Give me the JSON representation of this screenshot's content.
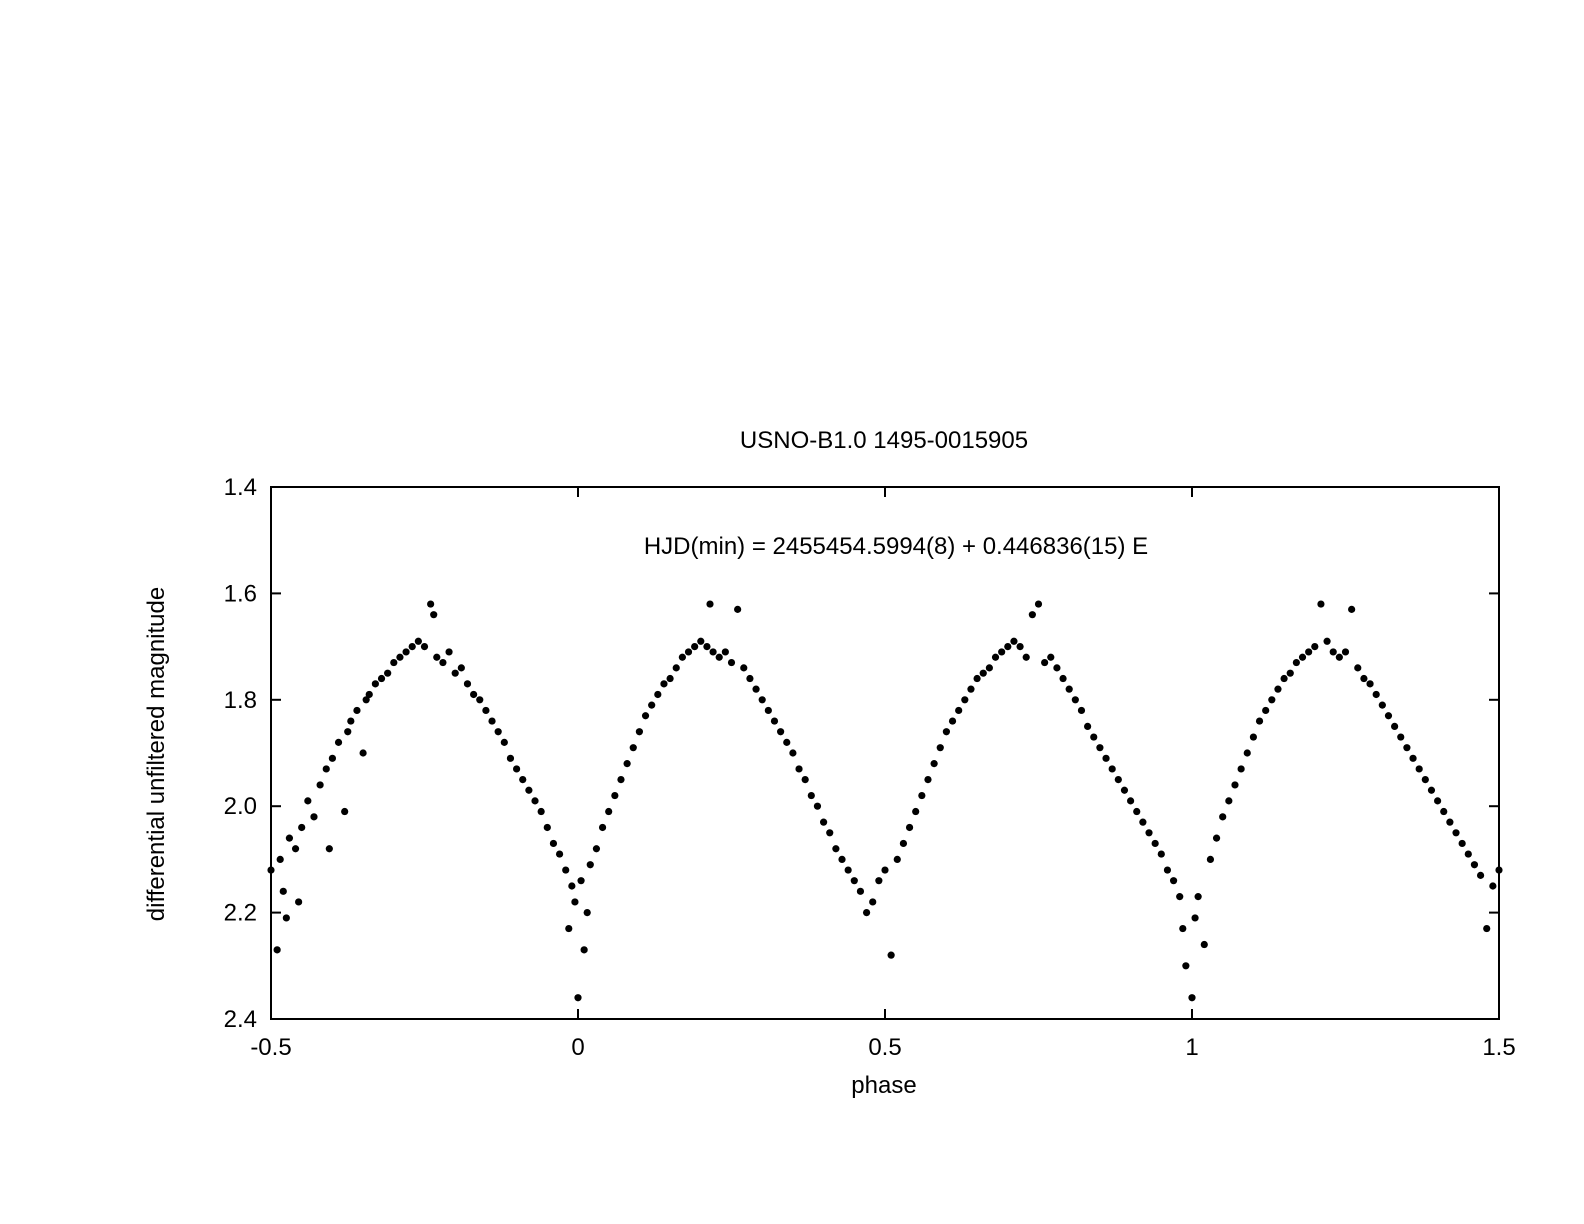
{
  "chart_data": {
    "type": "scatter",
    "title": "USNO-B1.0 1495-0015905",
    "annotation": "HJD(min) = 2455454.5994(8) + 0.446836(15) E",
    "xlabel": "phase",
    "ylabel": "differential unfiltered magnitude",
    "xlim": [
      -0.5,
      1.5
    ],
    "ylim": [
      2.4,
      1.4
    ],
    "y_inverted": true,
    "grid": false,
    "legend": "none",
    "x_ticks": [
      {
        "value": -0.5,
        "label": "-0.5"
      },
      {
        "value": 0,
        "label": "0"
      },
      {
        "value": 0.5,
        "label": "0.5"
      },
      {
        "value": 1,
        "label": "1"
      },
      {
        "value": 1.5,
        "label": "1.5"
      }
    ],
    "y_ticks": [
      {
        "value": 1.4,
        "label": "1.4"
      },
      {
        "value": 1.6,
        "label": "1.6"
      },
      {
        "value": 1.8,
        "label": "1.8"
      },
      {
        "value": 2.0,
        "label": "2.0"
      },
      {
        "value": 2.2,
        "label": "2.2"
      },
      {
        "value": 2.4,
        "label": "2.4"
      }
    ],
    "marker_color": "#000000",
    "series": [
      {
        "points": [
          [
            -0.5,
            2.12
          ],
          [
            -0.49,
            2.27
          ],
          [
            -0.485,
            2.1
          ],
          [
            -0.48,
            2.16
          ],
          [
            -0.475,
            2.21
          ],
          [
            -0.47,
            2.06
          ],
          [
            -0.46,
            2.08
          ],
          [
            -0.455,
            2.18
          ],
          [
            -0.45,
            2.04
          ],
          [
            -0.44,
            1.99
          ],
          [
            -0.43,
            2.02
          ],
          [
            -0.42,
            1.96
          ],
          [
            -0.41,
            1.93
          ],
          [
            -0.405,
            2.08
          ],
          [
            -0.4,
            1.91
          ],
          [
            -0.39,
            1.88
          ],
          [
            -0.38,
            2.01
          ],
          [
            -0.375,
            1.86
          ],
          [
            -0.37,
            1.84
          ],
          [
            -0.36,
            1.82
          ],
          [
            -0.35,
            1.9
          ],
          [
            -0.345,
            1.8
          ],
          [
            -0.34,
            1.79
          ],
          [
            -0.33,
            1.77
          ],
          [
            -0.32,
            1.76
          ],
          [
            -0.31,
            1.75
          ],
          [
            -0.3,
            1.73
          ],
          [
            -0.29,
            1.72
          ],
          [
            -0.28,
            1.71
          ],
          [
            -0.27,
            1.7
          ],
          [
            -0.26,
            1.69
          ],
          [
            -0.25,
            1.7
          ],
          [
            -0.24,
            1.62
          ],
          [
            -0.235,
            1.64
          ],
          [
            -0.23,
            1.72
          ],
          [
            -0.22,
            1.73
          ],
          [
            -0.21,
            1.71
          ],
          [
            -0.2,
            1.75
          ],
          [
            -0.19,
            1.74
          ],
          [
            -0.18,
            1.77
          ],
          [
            -0.17,
            1.79
          ],
          [
            -0.16,
            1.8
          ],
          [
            -0.15,
            1.82
          ],
          [
            -0.14,
            1.84
          ],
          [
            -0.13,
            1.86
          ],
          [
            -0.12,
            1.88
          ],
          [
            -0.11,
            1.91
          ],
          [
            -0.1,
            1.93
          ],
          [
            -0.09,
            1.95
          ],
          [
            -0.08,
            1.97
          ],
          [
            -0.07,
            1.99
          ],
          [
            -0.06,
            2.01
          ],
          [
            -0.05,
            2.04
          ],
          [
            -0.04,
            2.07
          ],
          [
            -0.03,
            2.09
          ],
          [
            -0.02,
            2.12
          ],
          [
            -0.015,
            2.23
          ],
          [
            -0.01,
            2.15
          ],
          [
            -0.005,
            2.18
          ],
          [
            0.0,
            2.36
          ],
          [
            0.005,
            2.14
          ],
          [
            0.01,
            2.27
          ],
          [
            0.015,
            2.2
          ],
          [
            0.02,
            2.11
          ],
          [
            0.03,
            2.08
          ],
          [
            0.04,
            2.04
          ],
          [
            0.05,
            2.01
          ],
          [
            0.06,
            1.98
          ],
          [
            0.07,
            1.95
          ],
          [
            0.08,
            1.92
          ],
          [
            0.09,
            1.89
          ],
          [
            0.1,
            1.86
          ],
          [
            0.11,
            1.83
          ],
          [
            0.12,
            1.81
          ],
          [
            0.13,
            1.79
          ],
          [
            0.14,
            1.77
          ],
          [
            0.15,
            1.76
          ],
          [
            0.16,
            1.74
          ],
          [
            0.17,
            1.72
          ],
          [
            0.18,
            1.71
          ],
          [
            0.19,
            1.7
          ],
          [
            0.2,
            1.69
          ],
          [
            0.21,
            1.7
          ],
          [
            0.215,
            1.62
          ],
          [
            0.22,
            1.71
          ],
          [
            0.23,
            1.72
          ],
          [
            0.24,
            1.71
          ],
          [
            0.25,
            1.73
          ],
          [
            0.26,
            1.63
          ],
          [
            0.27,
            1.74
          ],
          [
            0.28,
            1.76
          ],
          [
            0.29,
            1.78
          ],
          [
            0.3,
            1.8
          ],
          [
            0.31,
            1.82
          ],
          [
            0.32,
            1.84
          ],
          [
            0.33,
            1.86
          ],
          [
            0.34,
            1.88
          ],
          [
            0.35,
            1.9
          ],
          [
            0.36,
            1.93
          ],
          [
            0.37,
            1.95
          ],
          [
            0.38,
            1.98
          ],
          [
            0.39,
            2.0
          ],
          [
            0.4,
            2.03
          ],
          [
            0.41,
            2.05
          ],
          [
            0.42,
            2.08
          ],
          [
            0.43,
            2.1
          ],
          [
            0.44,
            2.12
          ],
          [
            0.45,
            2.14
          ],
          [
            0.46,
            2.16
          ],
          [
            0.47,
            2.2
          ],
          [
            0.48,
            2.18
          ],
          [
            0.49,
            2.14
          ],
          [
            0.5,
            2.12
          ],
          [
            0.51,
            2.28
          ],
          [
            0.52,
            2.1
          ],
          [
            0.53,
            2.07
          ],
          [
            0.54,
            2.04
          ],
          [
            0.55,
            2.01
          ],
          [
            0.56,
            1.98
          ],
          [
            0.57,
            1.95
          ],
          [
            0.58,
            1.92
          ],
          [
            0.59,
            1.89
          ],
          [
            0.6,
            1.86
          ],
          [
            0.61,
            1.84
          ],
          [
            0.62,
            1.82
          ],
          [
            0.63,
            1.8
          ],
          [
            0.64,
            1.78
          ],
          [
            0.65,
            1.76
          ],
          [
            0.66,
            1.75
          ],
          [
            0.67,
            1.74
          ],
          [
            0.68,
            1.72
          ],
          [
            0.69,
            1.71
          ],
          [
            0.7,
            1.7
          ],
          [
            0.71,
            1.69
          ],
          [
            0.72,
            1.7
          ],
          [
            0.73,
            1.72
          ],
          [
            0.74,
            1.64
          ],
          [
            0.75,
            1.62
          ],
          [
            0.76,
            1.73
          ],
          [
            0.77,
            1.72
          ],
          [
            0.78,
            1.74
          ],
          [
            0.79,
            1.76
          ],
          [
            0.8,
            1.78
          ],
          [
            0.81,
            1.8
          ],
          [
            0.82,
            1.82
          ],
          [
            0.83,
            1.85
          ],
          [
            0.84,
            1.87
          ],
          [
            0.85,
            1.89
          ],
          [
            0.86,
            1.91
          ],
          [
            0.87,
            1.93
          ],
          [
            0.88,
            1.95
          ],
          [
            0.89,
            1.97
          ],
          [
            0.9,
            1.99
          ],
          [
            0.91,
            2.01
          ],
          [
            0.92,
            2.03
          ],
          [
            0.93,
            2.05
          ],
          [
            0.94,
            2.07
          ],
          [
            0.95,
            2.09
          ],
          [
            0.96,
            2.12
          ],
          [
            0.97,
            2.14
          ],
          [
            0.98,
            2.17
          ],
          [
            0.985,
            2.23
          ],
          [
            0.99,
            2.3
          ],
          [
            1.0,
            2.36
          ],
          [
            1.005,
            2.21
          ],
          [
            1.01,
            2.17
          ],
          [
            1.02,
            2.26
          ],
          [
            1.03,
            2.1
          ],
          [
            1.04,
            2.06
          ],
          [
            1.05,
            2.02
          ],
          [
            1.06,
            1.99
          ],
          [
            1.07,
            1.96
          ],
          [
            1.08,
            1.93
          ],
          [
            1.09,
            1.9
          ],
          [
            1.1,
            1.87
          ],
          [
            1.11,
            1.84
          ],
          [
            1.12,
            1.82
          ],
          [
            1.13,
            1.8
          ],
          [
            1.14,
            1.78
          ],
          [
            1.15,
            1.76
          ],
          [
            1.16,
            1.75
          ],
          [
            1.17,
            1.73
          ],
          [
            1.18,
            1.72
          ],
          [
            1.19,
            1.71
          ],
          [
            1.2,
            1.7
          ],
          [
            1.21,
            1.62
          ],
          [
            1.22,
            1.69
          ],
          [
            1.23,
            1.71
          ],
          [
            1.24,
            1.72
          ],
          [
            1.25,
            1.71
          ],
          [
            1.26,
            1.63
          ],
          [
            1.27,
            1.74
          ],
          [
            1.28,
            1.76
          ],
          [
            1.29,
            1.77
          ],
          [
            1.3,
            1.79
          ],
          [
            1.31,
            1.81
          ],
          [
            1.32,
            1.83
          ],
          [
            1.33,
            1.85
          ],
          [
            1.34,
            1.87
          ],
          [
            1.35,
            1.89
          ],
          [
            1.36,
            1.91
          ],
          [
            1.37,
            1.93
          ],
          [
            1.38,
            1.95
          ],
          [
            1.39,
            1.97
          ],
          [
            1.4,
            1.99
          ],
          [
            1.41,
            2.01
          ],
          [
            1.42,
            2.03
          ],
          [
            1.43,
            2.05
          ],
          [
            1.44,
            2.07
          ],
          [
            1.45,
            2.09
          ],
          [
            1.46,
            2.11
          ],
          [
            1.47,
            2.13
          ],
          [
            1.48,
            2.23
          ],
          [
            1.49,
            2.15
          ],
          [
            1.5,
            2.12
          ]
        ]
      }
    ]
  }
}
